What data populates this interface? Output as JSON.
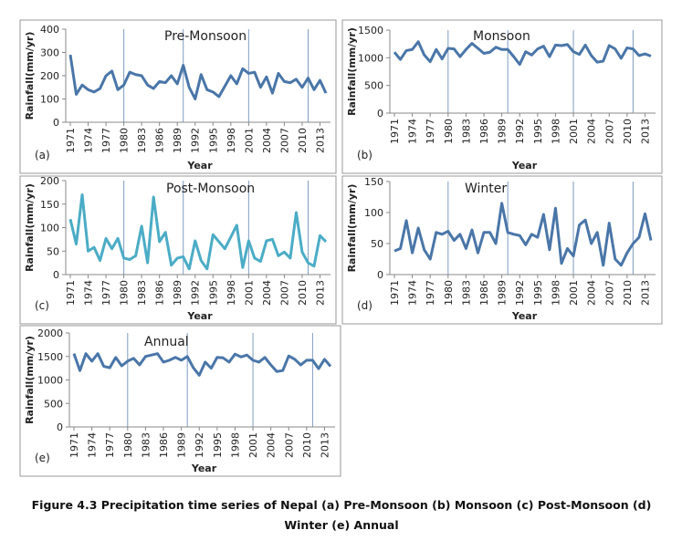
{
  "caption": "Figure 4.3 Precipitation time series of Nepal (a) Pre-Monsoon (b) Monsoon (c) Post-Monsoon (d) Winter (e) Annual",
  "chart_data": [
    {
      "type": "line",
      "title": "Pre-Monsoon",
      "panel_label": "(a)",
      "x_label": "Year",
      "y_label": "Rainfall(mm/yr)",
      "x": [
        1971,
        1972,
        1973,
        1974,
        1975,
        1976,
        1977,
        1978,
        1979,
        1980,
        1981,
        1982,
        1983,
        1984,
        1985,
        1986,
        1987,
        1988,
        1989,
        1990,
        1991,
        1992,
        1993,
        1994,
        1995,
        1996,
        1997,
        1998,
        1999,
        2000,
        2001,
        2002,
        2003,
        2004,
        2005,
        2006,
        2007,
        2008,
        2009,
        2010,
        2011,
        2012,
        2013,
        2014
      ],
      "series": [
        {
          "color": "#4a76a8",
          "values": [
            290,
            120,
            160,
            140,
            130,
            145,
            200,
            220,
            140,
            160,
            215,
            205,
            200,
            160,
            145,
            175,
            170,
            200,
            165,
            245,
            150,
            100,
            205,
            140,
            130,
            110,
            155,
            200,
            165,
            230,
            210,
            215,
            150,
            195,
            125,
            210,
            175,
            170,
            185,
            150,
            190,
            140,
            180,
            125
          ]
        }
      ],
      "xlim": [
        1971,
        2014
      ],
      "xticks": [
        1971,
        1974,
        1977,
        1980,
        1983,
        1986,
        1989,
        1992,
        1995,
        1998,
        2001,
        2004,
        2007,
        2010,
        2013
      ],
      "ylim": [
        0,
        400
      ],
      "yticks": [
        0,
        100,
        200,
        300,
        400
      ],
      "vlines": [
        1980,
        1990,
        2001,
        2011
      ]
    },
    {
      "type": "line",
      "title": "Monsoon",
      "panel_label": "(b)",
      "x_label": "Year",
      "y_label": "Rainfall(mm/yr)",
      "x": [
        1971,
        1972,
        1973,
        1974,
        1975,
        1976,
        1977,
        1978,
        1979,
        1980,
        1981,
        1982,
        1983,
        1984,
        1985,
        1986,
        1987,
        1988,
        1989,
        1990,
        1991,
        1992,
        1993,
        1994,
        1995,
        1996,
        1997,
        1998,
        1999,
        2000,
        2001,
        2002,
        2003,
        2004,
        2005,
        2006,
        2007,
        2008,
        2009,
        2010,
        2011,
        2012,
        2013,
        2014
      ],
      "series": [
        {
          "color": "#4a76a8",
          "values": [
            1100,
            970,
            1130,
            1150,
            1290,
            1050,
            930,
            1150,
            980,
            1170,
            1160,
            1020,
            1150,
            1260,
            1170,
            1080,
            1100,
            1190,
            1150,
            1150,
            1020,
            880,
            1110,
            1050,
            1160,
            1210,
            1020,
            1230,
            1220,
            1240,
            1110,
            1060,
            1230,
            1040,
            920,
            940,
            1220,
            1160,
            990,
            1180,
            1160,
            1040,
            1070,
            1030
          ]
        }
      ],
      "xlim": [
        1971,
        2014
      ],
      "xticks": [
        1971,
        1974,
        1977,
        1980,
        1983,
        1986,
        1989,
        1992,
        1995,
        1998,
        2001,
        2004,
        2007,
        2010,
        2013
      ],
      "ylim": [
        0,
        1500
      ],
      "yticks": [
        0,
        500,
        1000,
        1500
      ],
      "vlines": [
        1980,
        1990,
        2001,
        2011
      ]
    },
    {
      "type": "line",
      "title": "Post-Monsoon",
      "panel_label": "(c)",
      "x_label": "Year",
      "y_label": "Rainfall(mm/yr)",
      "x": [
        1971,
        1972,
        1973,
        1974,
        1975,
        1976,
        1977,
        1978,
        1979,
        1980,
        1981,
        1982,
        1983,
        1984,
        1985,
        1986,
        1987,
        1988,
        1989,
        1990,
        1991,
        1992,
        1993,
        1994,
        1995,
        1996,
        1997,
        1998,
        1999,
        2000,
        2001,
        2002,
        2003,
        2004,
        2005,
        2006,
        2007,
        2008,
        2009,
        2010,
        2011,
        2012,
        2013,
        2014
      ],
      "series": [
        {
          "color": "#4bacc6",
          "values": [
            118,
            65,
            170,
            50,
            58,
            30,
            77,
            55,
            77,
            35,
            32,
            40,
            103,
            25,
            165,
            70,
            90,
            20,
            35,
            38,
            12,
            72,
            30,
            12,
            85,
            70,
            55,
            80,
            105,
            15,
            72,
            35,
            28,
            72,
            75,
            40,
            48,
            35,
            132,
            48,
            25,
            18,
            83,
            70
          ]
        }
      ],
      "xlim": [
        1971,
        2014
      ],
      "xticks": [
        1971,
        1974,
        1977,
        1980,
        1983,
        1986,
        1989,
        1992,
        1995,
        1998,
        2001,
        2004,
        2007,
        2010,
        2013
      ],
      "ylim": [
        0,
        200
      ],
      "yticks": [
        0,
        50,
        100,
        150,
        200
      ],
      "vlines": [
        1980,
        1990,
        2001,
        2011
      ]
    },
    {
      "type": "line",
      "title": "Winter",
      "panel_label": "(d)",
      "x_label": "Year",
      "y_label": "Rainfall(mm/yr)",
      "x": [
        1971,
        1972,
        1973,
        1974,
        1975,
        1976,
        1977,
        1978,
        1979,
        1980,
        1981,
        1982,
        1983,
        1984,
        1985,
        1986,
        1987,
        1988,
        1989,
        1990,
        1991,
        1992,
        1993,
        1994,
        1995,
        1996,
        1997,
        1998,
        1999,
        2000,
        2001,
        2002,
        2003,
        2004,
        2005,
        2006,
        2007,
        2008,
        2009,
        2010,
        2011,
        2012,
        2013,
        2014
      ],
      "series": [
        {
          "color": "#4a76a8",
          "values": [
            38,
            42,
            87,
            35,
            75,
            40,
            25,
            68,
            65,
            70,
            55,
            65,
            42,
            72,
            35,
            68,
            68,
            50,
            115,
            68,
            65,
            63,
            48,
            65,
            60,
            97,
            40,
            107,
            18,
            42,
            30,
            80,
            88,
            50,
            68,
            15,
            83,
            25,
            15,
            35,
            50,
            60,
            98,
            55
          ]
        }
      ],
      "xlim": [
        1971,
        2014
      ],
      "xticks": [
        1971,
        1974,
        1977,
        1980,
        1983,
        1986,
        1989,
        1992,
        1995,
        1998,
        2001,
        2004,
        2007,
        2010,
        2013
      ],
      "ylim": [
        0,
        150
      ],
      "yticks": [
        0,
        50,
        100,
        150
      ],
      "vlines": [
        1980,
        1990,
        2001,
        2011
      ]
    },
    {
      "type": "line",
      "title": "Annual",
      "panel_label": "(e)",
      "x_label": "Year",
      "y_label": "Rainfall(mm/yr)",
      "x": [
        1971,
        1972,
        1973,
        1974,
        1975,
        1976,
        1977,
        1978,
        1979,
        1980,
        1981,
        1982,
        1983,
        1984,
        1985,
        1986,
        1987,
        1988,
        1989,
        1990,
        1991,
        1992,
        1993,
        1994,
        1995,
        1996,
        1997,
        1998,
        1999,
        2000,
        2001,
        2002,
        2003,
        2004,
        2005,
        2006,
        2007,
        2008,
        2009,
        2010,
        2011,
        2012,
        2013,
        2014
      ],
      "series": [
        {
          "color": "#4a76a8",
          "values": [
            1560,
            1200,
            1560,
            1400,
            1560,
            1290,
            1260,
            1480,
            1300,
            1400,
            1460,
            1320,
            1500,
            1530,
            1560,
            1380,
            1420,
            1480,
            1420,
            1500,
            1260,
            1100,
            1380,
            1250,
            1480,
            1470,
            1380,
            1550,
            1490,
            1530,
            1420,
            1380,
            1480,
            1320,
            1180,
            1200,
            1510,
            1440,
            1320,
            1420,
            1420,
            1240,
            1440,
            1290
          ]
        }
      ],
      "xlim": [
        1971,
        2014
      ],
      "xticks": [
        1971,
        1974,
        1977,
        1980,
        1983,
        1986,
        1989,
        1992,
        1995,
        1998,
        2001,
        2004,
        2007,
        2010,
        2013
      ],
      "ylim": [
        0,
        2000
      ],
      "yticks": [
        0,
        500,
        1000,
        1500,
        2000
      ],
      "vlines": [
        1980,
        1990,
        2001,
        2011
      ]
    }
  ]
}
